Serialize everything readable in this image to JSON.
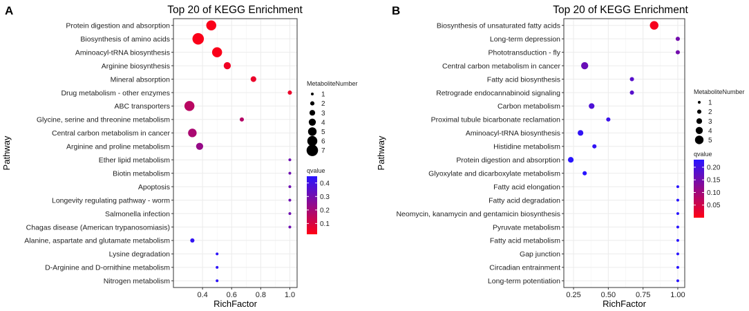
{
  "chart_data": [
    {
      "panel": "A",
      "type": "scatter",
      "title": "Top 20 of KEGG Enrichment",
      "xlabel": "RichFactor",
      "ylabel": "Pathway",
      "xlim": [
        0.2,
        1.05
      ],
      "xticks": [
        0.4,
        0.6,
        0.8,
        1.0
      ],
      "xtick_labels": [
        "0.4",
        "0.6",
        "0.8",
        "1.0"
      ],
      "size_legend": {
        "title": "MetaboliteNumber",
        "values": [
          1,
          2,
          3,
          4,
          5,
          6,
          7
        ],
        "labels": [
          "1",
          "2",
          "3",
          "4",
          "5",
          "6",
          "7"
        ]
      },
      "color_legend": {
        "title": "qvalue",
        "min": 0.02,
        "max": 0.45,
        "ticks": [
          0.1,
          0.2,
          0.3,
          0.4
        ],
        "tick_labels": [
          "0.1",
          "0.2",
          "0.3",
          "0.4"
        ]
      },
      "points": [
        {
          "pathway": "Protein digestion and absorption",
          "rich": 0.46,
          "number": 6,
          "q": 0.03
        },
        {
          "pathway": "Biosynthesis of amino acids",
          "rich": 0.37,
          "number": 7,
          "q": 0.03
        },
        {
          "pathway": "Aminoacyl-tRNA biosynthesis",
          "rich": 0.5,
          "number": 6,
          "q": 0.03
        },
        {
          "pathway": "Arginine biosynthesis",
          "rich": 0.57,
          "number": 4,
          "q": 0.05
        },
        {
          "pathway": "Mineral absorption",
          "rich": 0.75,
          "number": 3,
          "q": 0.06
        },
        {
          "pathway": "Drug metabolism - other enzymes",
          "rich": 1.0,
          "number": 2,
          "q": 0.06
        },
        {
          "pathway": "ABC transporters",
          "rich": 0.31,
          "number": 6,
          "q": 0.16
        },
        {
          "pathway": "Glycine, serine and threonine metabolism",
          "rich": 0.67,
          "number": 2,
          "q": 0.17
        },
        {
          "pathway": "Central carbon metabolism in cancer",
          "rich": 0.33,
          "number": 5,
          "q": 0.19
        },
        {
          "pathway": "Arginine and proline metabolism",
          "rich": 0.38,
          "number": 4,
          "q": 0.23
        },
        {
          "pathway": "Ether lipid metabolism",
          "rich": 1.0,
          "number": 1,
          "q": 0.31
        },
        {
          "pathway": "Biotin metabolism",
          "rich": 1.0,
          "number": 1,
          "q": 0.31
        },
        {
          "pathway": "Apoptosis",
          "rich": 1.0,
          "number": 1,
          "q": 0.31
        },
        {
          "pathway": "Longevity regulating pathway - worm",
          "rich": 1.0,
          "number": 1,
          "q": 0.31
        },
        {
          "pathway": "Salmonella infection",
          "rich": 1.0,
          "number": 1,
          "q": 0.31
        },
        {
          "pathway": "Chagas disease (American trypanosomiasis)",
          "rich": 1.0,
          "number": 1,
          "q": 0.31
        },
        {
          "pathway": "Alanine, aspartate and glutamate metabolism",
          "rich": 0.33,
          "number": 2,
          "q": 0.43
        },
        {
          "pathway": "Lysine degradation",
          "rich": 0.5,
          "number": 1,
          "q": 0.44
        },
        {
          "pathway": "D-Arginine and D-ornithine metabolism",
          "rich": 0.5,
          "number": 1,
          "q": 0.44
        },
        {
          "pathway": "Nitrogen metabolism",
          "rich": 0.5,
          "number": 1,
          "q": 0.44
        }
      ]
    },
    {
      "panel": "B",
      "type": "scatter",
      "title": "Top 20 of KEGG Enrichment",
      "xlabel": "RichFactor",
      "ylabel": "Pathway",
      "xlim": [
        0.18,
        1.05
      ],
      "xticks": [
        0.25,
        0.5,
        0.75,
        1.0
      ],
      "xtick_labels": [
        "0.25",
        "0.50",
        "0.75",
        "1.00"
      ],
      "size_legend": {
        "title": "MetaboliteNumber",
        "values": [
          1,
          2,
          3,
          4,
          5
        ],
        "labels": [
          "1",
          "2",
          "3",
          "4",
          "5"
        ]
      },
      "color_legend": {
        "title": "qvalue",
        "min": 0.0,
        "max": 0.23,
        "ticks": [
          0.05,
          0.1,
          0.15,
          0.2
        ],
        "tick_labels": [
          "0.05",
          "0.10",
          "0.15",
          "0.20"
        ]
      },
      "points": [
        {
          "pathway": "Biosynthesis of unsaturated fatty acids",
          "rich": 0.83,
          "number": 5,
          "q": 0.01
        },
        {
          "pathway": "Long-term depression",
          "rich": 1.0,
          "number": 2,
          "q": 0.15
        },
        {
          "pathway": "Phototransduction - fly",
          "rich": 1.0,
          "number": 2,
          "q": 0.15
        },
        {
          "pathway": "Central carbon metabolism in cancer",
          "rich": 0.33,
          "number": 4,
          "q": 0.16
        },
        {
          "pathway": "Fatty acid biosynthesis",
          "rich": 0.67,
          "number": 2,
          "q": 0.18
        },
        {
          "pathway": "Retrograde endocannabinoid signaling",
          "rich": 0.67,
          "number": 2,
          "q": 0.18
        },
        {
          "pathway": "Carbon metabolism",
          "rich": 0.38,
          "number": 3,
          "q": 0.19
        },
        {
          "pathway": "Proximal tubule bicarbonate reclamation",
          "rich": 0.5,
          "number": 2,
          "q": 0.21
        },
        {
          "pathway": "Aminoacyl-tRNA biosynthesis",
          "rich": 0.3,
          "number": 3,
          "q": 0.22
        },
        {
          "pathway": "Histidine metabolism",
          "rich": 0.4,
          "number": 2,
          "q": 0.22
        },
        {
          "pathway": "Protein digestion and absorption",
          "rich": 0.23,
          "number": 3,
          "q": 0.23
        },
        {
          "pathway": "Glyoxylate and dicarboxylate metabolism",
          "rich": 0.33,
          "number": 2,
          "q": 0.23
        },
        {
          "pathway": "Fatty acid elongation",
          "rich": 1.0,
          "number": 1,
          "q": 0.23
        },
        {
          "pathway": "Fatty acid degradation",
          "rich": 1.0,
          "number": 1,
          "q": 0.23
        },
        {
          "pathway": "Neomycin, kanamycin and gentamicin biosynthesis",
          "rich": 1.0,
          "number": 1,
          "q": 0.23
        },
        {
          "pathway": "Pyruvate metabolism",
          "rich": 1.0,
          "number": 1,
          "q": 0.23
        },
        {
          "pathway": "Fatty acid metabolism",
          "rich": 1.0,
          "number": 1,
          "q": 0.23
        },
        {
          "pathway": "Gap junction",
          "rich": 1.0,
          "number": 1,
          "q": 0.23
        },
        {
          "pathway": "Circadian entrainment",
          "rich": 1.0,
          "number": 1,
          "q": 0.23
        },
        {
          "pathway": "Long-term potentiation",
          "rich": 1.0,
          "number": 1,
          "q": 0.23
        }
      ]
    }
  ]
}
